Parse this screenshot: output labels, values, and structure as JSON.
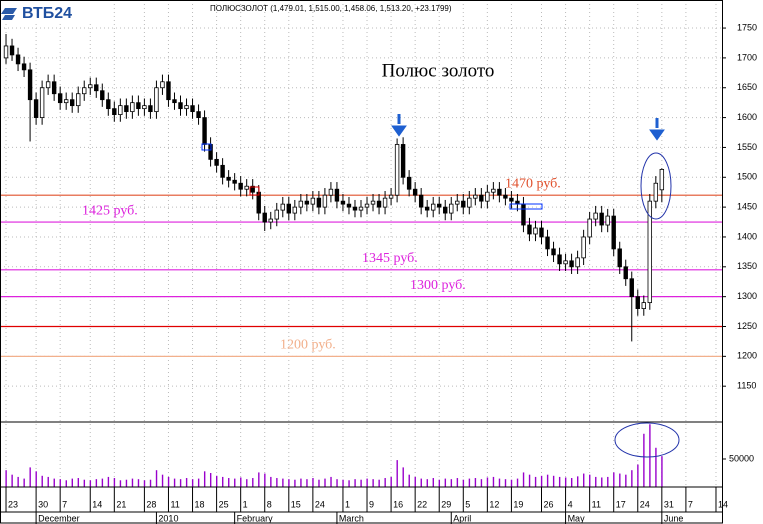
{
  "header": {
    "logo": "ВТБ24",
    "ticker_info": "ПОЛЮСЗОЛОТ (1,479.01, 1,515.00, 1,458.06, 1,513.20, +23.1799)"
  },
  "chart_data": {
    "type": "candlestick",
    "title": "Полюс золото",
    "open": [
      1700,
      1720,
      1705,
      1690,
      1680,
      1630,
      1600,
      1650,
      1660,
      1640,
      1625,
      1630,
      1620,
      1640,
      1650,
      1655,
      1645,
      1630,
      1615,
      1605,
      1620,
      1610,
      1625,
      1615,
      1620,
      1610,
      1650,
      1660,
      1630,
      1625,
      1615,
      1620,
      1610,
      1600,
      1555,
      1530,
      1520,
      1500,
      1495,
      1490,
      1480,
      1485,
      1475,
      1440,
      1425,
      1430,
      1445,
      1455,
      1440,
      1450,
      1460,
      1455,
      1465,
      1450,
      1470,
      1480,
      1460,
      1455,
      1450,
      1445,
      1450,
      1455,
      1460,
      1450,
      1465,
      1470,
      1555,
      1500,
      1480,
      1470,
      1450,
      1445,
      1455,
      1450,
      1440,
      1455,
      1460,
      1450,
      1465,
      1470,
      1460,
      1475,
      1480,
      1470,
      1465,
      1460,
      1455,
      1420,
      1405,
      1415,
      1400,
      1380,
      1370,
      1355,
      1360,
      1350,
      1365,
      1400,
      1430,
      1440,
      1420,
      1435,
      1380,
      1350,
      1330,
      1300,
      1280,
      1290,
      1460,
      1479.01
    ],
    "high": [
      1740,
      1732,
      1717,
      1702,
      1692,
      1642,
      1662,
      1672,
      1672,
      1652,
      1642,
      1642,
      1652,
      1662,
      1667,
      1667,
      1657,
      1642,
      1627,
      1632,
      1632,
      1637,
      1637,
      1632,
      1632,
      1662,
      1672,
      1672,
      1642,
      1637,
      1632,
      1632,
      1622,
      1612,
      1567,
      1542,
      1532,
      1512,
      1507,
      1502,
      1497,
      1497,
      1487,
      1452,
      1442,
      1457,
      1467,
      1467,
      1462,
      1472,
      1472,
      1477,
      1477,
      1482,
      1492,
      1492,
      1472,
      1467,
      1462,
      1462,
      1467,
      1472,
      1472,
      1477,
      1482,
      1565,
      1567,
      1512,
      1492,
      1482,
      1462,
      1467,
      1467,
      1462,
      1467,
      1472,
      1472,
      1477,
      1482,
      1482,
      1487,
      1492,
      1492,
      1482,
      1477,
      1472,
      1467,
      1432,
      1427,
      1427,
      1412,
      1392,
      1382,
      1372,
      1372,
      1377,
      1412,
      1442,
      1452,
      1452,
      1447,
      1447,
      1392,
      1362,
      1342,
      1312,
      1302,
      1472,
      1502,
      1515
    ],
    "low": [
      1690,
      1695,
      1678,
      1668,
      1560,
      1588,
      1588,
      1638,
      1628,
      1613,
      1613,
      1608,
      1608,
      1628,
      1638,
      1633,
      1618,
      1603,
      1593,
      1593,
      1598,
      1598,
      1603,
      1603,
      1598,
      1598,
      1638,
      1618,
      1613,
      1603,
      1603,
      1598,
      1588,
      1543,
      1518,
      1508,
      1488,
      1483,
      1478,
      1468,
      1468,
      1463,
      1428,
      1410,
      1413,
      1418,
      1433,
      1428,
      1428,
      1438,
      1443,
      1443,
      1438,
      1438,
      1458,
      1448,
      1443,
      1438,
      1433,
      1433,
      1438,
      1443,
      1438,
      1438,
      1453,
      1458,
      1488,
      1468,
      1458,
      1438,
      1433,
      1433,
      1438,
      1428,
      1428,
      1443,
      1438,
      1438,
      1453,
      1448,
      1448,
      1463,
      1458,
      1453,
      1448,
      1443,
      1408,
      1393,
      1393,
      1388,
      1368,
      1358,
      1343,
      1343,
      1338,
      1338,
      1353,
      1388,
      1418,
      1408,
      1408,
      1368,
      1338,
      1318,
      1225,
      1268,
      1268,
      1278,
      1448,
      1458.06
    ],
    "close": [
      1720,
      1705,
      1690,
      1680,
      1630,
      1600,
      1650,
      1660,
      1640,
      1625,
      1630,
      1620,
      1640,
      1650,
      1655,
      1645,
      1630,
      1615,
      1605,
      1620,
      1610,
      1625,
      1615,
      1620,
      1610,
      1650,
      1660,
      1630,
      1625,
      1615,
      1620,
      1610,
      1600,
      1555,
      1530,
      1520,
      1500,
      1495,
      1490,
      1480,
      1485,
      1475,
      1440,
      1425,
      1430,
      1445,
      1455,
      1440,
      1450,
      1460,
      1455,
      1465,
      1450,
      1470,
      1480,
      1460,
      1455,
      1450,
      1445,
      1450,
      1455,
      1460,
      1450,
      1465,
      1470,
      1555,
      1500,
      1480,
      1470,
      1450,
      1445,
      1455,
      1450,
      1440,
      1455,
      1460,
      1450,
      1465,
      1470,
      1460,
      1475,
      1480,
      1470,
      1465,
      1460,
      1455,
      1420,
      1405,
      1415,
      1400,
      1380,
      1370,
      1355,
      1360,
      1350,
      1365,
      1400,
      1430,
      1440,
      1420,
      1435,
      1380,
      1350,
      1330,
      1300,
      1280,
      1290,
      1460,
      1490,
      1513.2
    ],
    "volume": [
      30000,
      22000,
      18000,
      15000,
      35000,
      28000,
      20000,
      18000,
      15000,
      14000,
      12000,
      15000,
      16000,
      13000,
      12000,
      14000,
      15000,
      18000,
      16000,
      12000,
      13000,
      15000,
      14000,
      12000,
      13000,
      30000,
      22000,
      18000,
      15000,
      14000,
      16000,
      14000,
      15000,
      28000,
      25000,
      20000,
      18000,
      16000,
      15000,
      17000,
      14000,
      16000,
      26000,
      24000,
      18000,
      16000,
      15000,
      14000,
      13000,
      15000,
      14000,
      16000,
      13000,
      15000,
      18000,
      14000,
      13000,
      12000,
      14000,
      13000,
      15000,
      14000,
      13000,
      16000,
      18000,
      48000,
      35000,
      22000,
      18000,
      15000,
      14000,
      16000,
      13000,
      15000,
      14000,
      16000,
      13000,
      15000,
      16000,
      14000,
      17000,
      18000,
      15000,
      14000,
      13000,
      15000,
      26000,
      22000,
      18000,
      20000,
      22000,
      20000,
      18000,
      17000,
      16000,
      19000,
      24000,
      22000,
      18000,
      17000,
      18000,
      26000,
      24000,
      22000,
      30000,
      40000,
      95000,
      112000,
      70000,
      55000
    ],
    "volume_color": "#9900cc",
    "ylim": [
      1090,
      1797
    ],
    "yticks": [
      1150,
      1200,
      1250,
      1300,
      1350,
      1400,
      1450,
      1500,
      1550,
      1600,
      1650,
      1700,
      1750
    ],
    "vlim": [
      0,
      116000
    ],
    "vticks": [
      50000
    ],
    "xlim": [
      -1,
      119
    ],
    "xticks": [
      {
        "value": 0,
        "label": "23"
      },
      {
        "value": 5,
        "label": "30"
      },
      {
        "value": 9,
        "label": "7"
      },
      {
        "value": 14,
        "label": "14"
      },
      {
        "value": 18,
        "label": "21"
      },
      {
        "value": 23,
        "label": "28"
      },
      {
        "value": 27,
        "label": "11"
      },
      {
        "value": 31,
        "label": "18"
      },
      {
        "value": 35,
        "label": "25"
      },
      {
        "value": 39,
        "label": "1"
      },
      {
        "value": 43,
        "label": "8"
      },
      {
        "value": 47,
        "label": "15"
      },
      {
        "value": 51,
        "label": "24"
      },
      {
        "value": 56,
        "label": "1"
      },
      {
        "value": 60,
        "label": "9"
      },
      {
        "value": 64,
        "label": "16"
      },
      {
        "value": 68,
        "label": "22"
      },
      {
        "value": 72,
        "label": "29"
      },
      {
        "value": 76,
        "label": "5"
      },
      {
        "value": 80,
        "label": "12"
      },
      {
        "value": 84,
        "label": "19"
      },
      {
        "value": 89,
        "label": "26"
      },
      {
        "value": 93,
        "label": "4"
      },
      {
        "value": 97,
        "label": "11"
      },
      {
        "value": 101,
        "label": "17"
      },
      {
        "value": 105,
        "label": "24"
      },
      {
        "value": 109,
        "label": "31"
      },
      {
        "value": 113,
        "label": "7"
      },
      {
        "value": 118,
        "label": "14"
      }
    ],
    "months": [
      {
        "value": 5,
        "label": "December"
      },
      {
        "value": 25,
        "label": "2010"
      },
      {
        "value": 38,
        "label": "February"
      },
      {
        "value": 55,
        "label": "March"
      },
      {
        "value": 74,
        "label": "April"
      },
      {
        "value": 93,
        "label": "May"
      },
      {
        "value": 109,
        "label": "June"
      }
    ],
    "levels": [
      {
        "value": 1470,
        "label": "1470 руб.",
        "color": "#e0502c"
      },
      {
        "value": 1425,
        "label": "1425 руб.",
        "color": "#dd22dd"
      },
      {
        "value": 1345,
        "label": "1345 руб.",
        "color": "#dd22dd"
      },
      {
        "value": 1300,
        "label": "1300 руб.",
        "color": "#dd22dd"
      },
      {
        "value": 1250,
        "color": "#e00000"
      },
      {
        "value": 1200,
        "label": "1200 руб.",
        "color": "#f2b08c"
      }
    ],
    "grid": true
  }
}
